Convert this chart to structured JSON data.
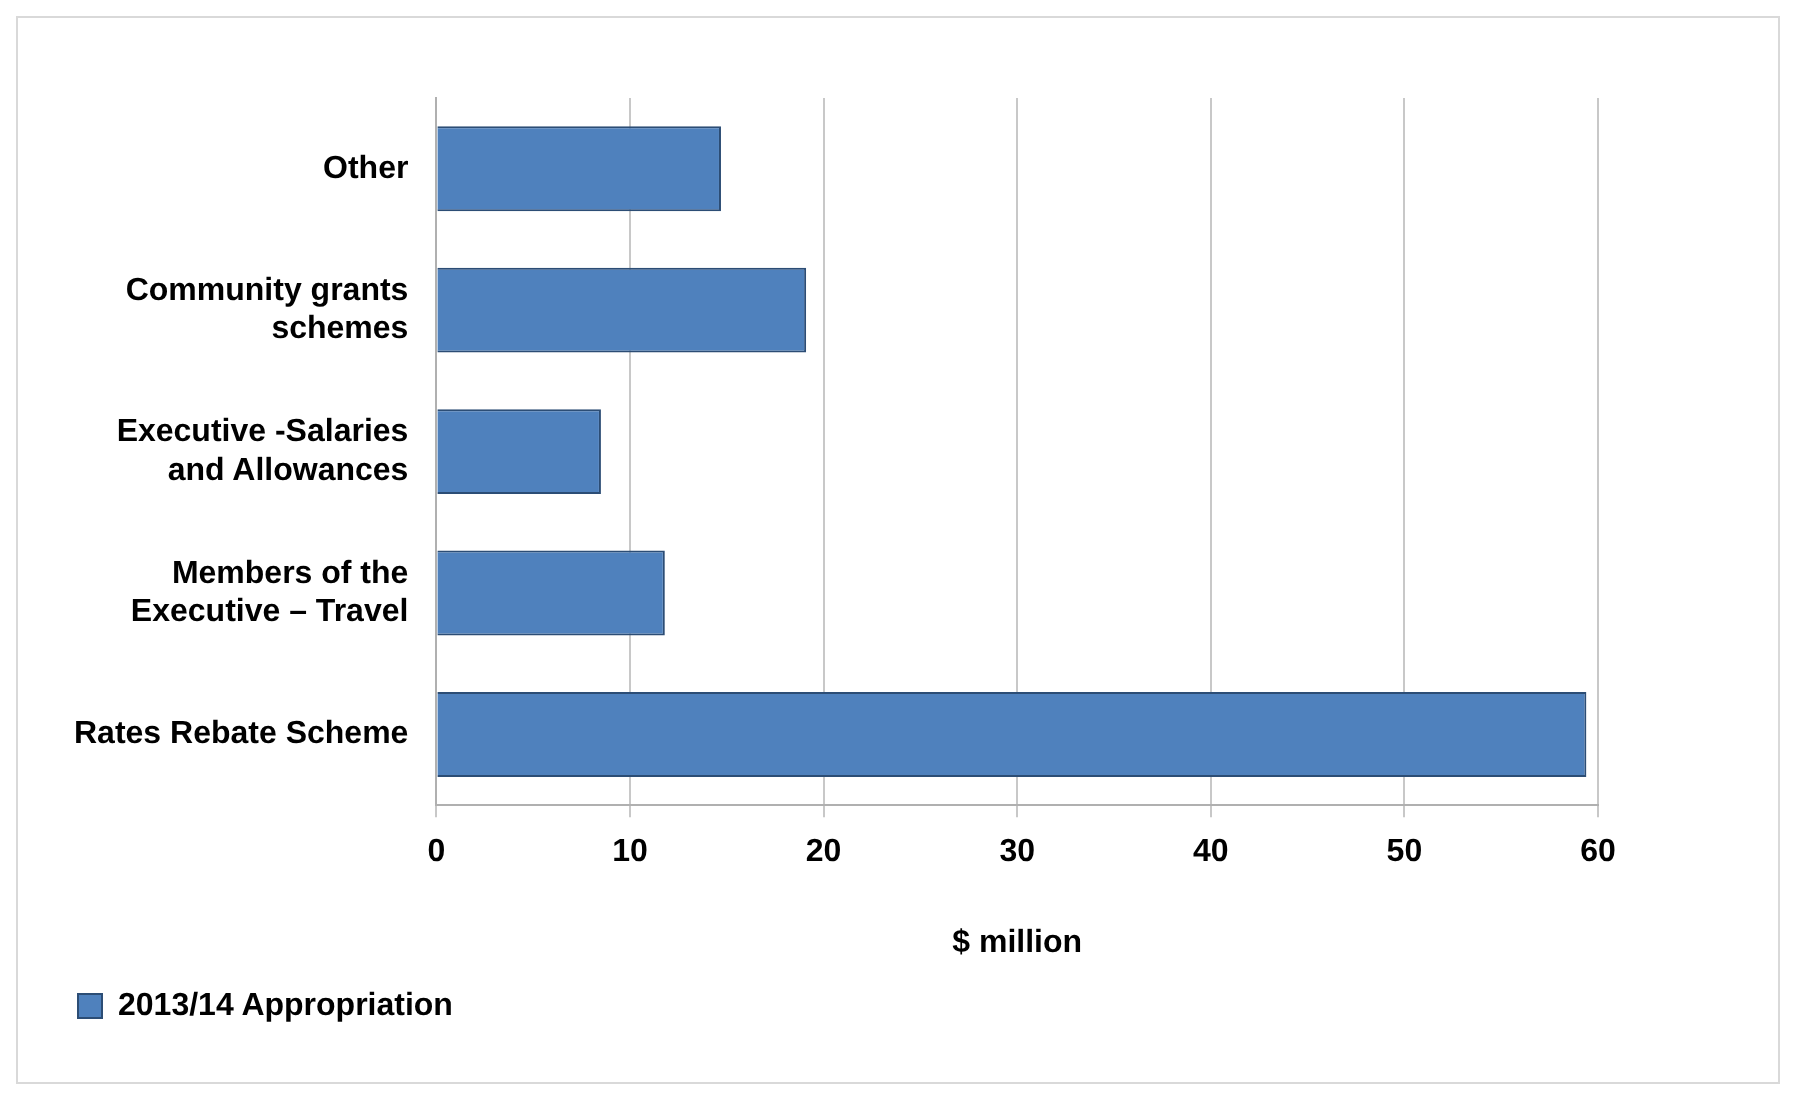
{
  "chart_data": {
    "type": "bar",
    "orientation": "horizontal",
    "xlabel": "$ million",
    "categories": [
      "Other",
      "Community grants schemes",
      "Executive -Salaries and Allowances",
      "Members of the Executive – Travel",
      "Rates Rebate Scheme"
    ],
    "series": [
      {
        "name": "2013/14 Appropriation",
        "color": "#4f81bd",
        "values": [
          14.7,
          19.1,
          8.5,
          11.8,
          59.4
        ]
      }
    ],
    "xlim": [
      0,
      60
    ],
    "xticks": [
      0,
      10,
      20,
      30,
      40,
      50,
      60
    ],
    "grid": "x",
    "legend": "bottom left"
  }
}
